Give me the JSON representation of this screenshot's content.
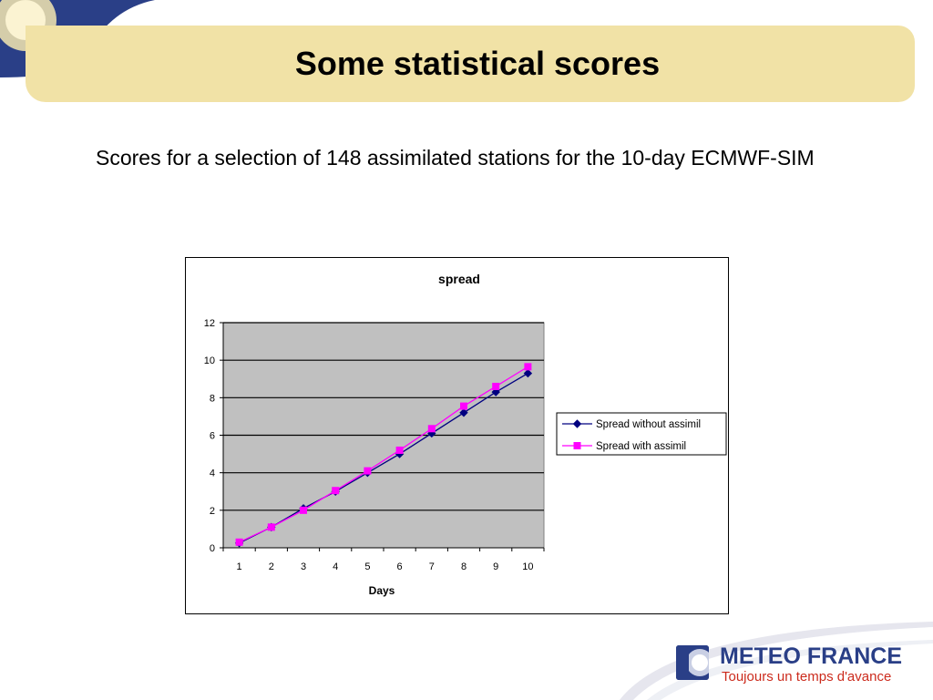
{
  "slide": {
    "title": "Some statistical scores",
    "subtitle": "Scores for a selection of 148 assimilated stations for the 10-day ECMWF-SIM"
  },
  "chart_data": {
    "type": "line",
    "title": "spread",
    "xlabel": "Days",
    "ylabel": "",
    "categories": [
      "1",
      "2",
      "3",
      "4",
      "5",
      "6",
      "7",
      "8",
      "9",
      "10"
    ],
    "ylim": [
      0,
      12
    ],
    "yticks": [
      0,
      2,
      4,
      6,
      8,
      10,
      12
    ],
    "grid": true,
    "plot_background": "#c0c0c0",
    "legend_position": "right",
    "series": [
      {
        "name": "Spread without assimil",
        "values": [
          0.25,
          1.1,
          2.1,
          3.0,
          4.0,
          5.0,
          6.1,
          7.2,
          8.3,
          9.3
        ],
        "color": "#000080",
        "marker": "diamond"
      },
      {
        "name": "Spread with assimil",
        "values": [
          0.3,
          1.1,
          2.0,
          3.05,
          4.1,
          5.2,
          6.35,
          7.55,
          8.6,
          9.65
        ],
        "color": "#ff00ff",
        "marker": "square"
      }
    ]
  },
  "footer": {
    "logo_name": "METEO FRANCE",
    "logo_tagline": "Toujours un temps d'avance",
    "brand_color": "#2a3f87",
    "tagline_color": "#cc2b1d"
  }
}
